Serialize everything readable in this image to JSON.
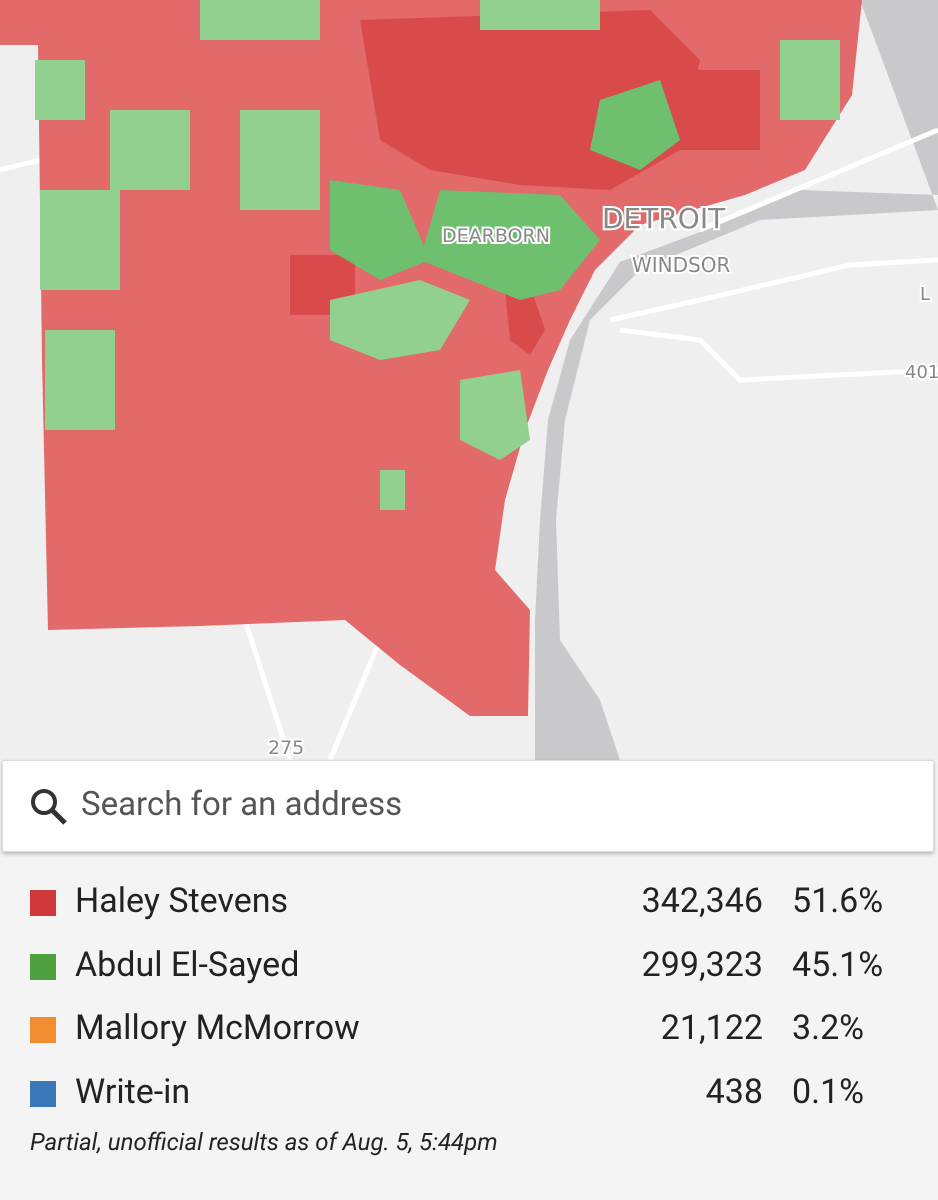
{
  "map": {
    "labels": [
      "DEARBORN",
      "DETROIT",
      "WINDSOR",
      "275",
      "L",
      "401"
    ]
  },
  "search": {
    "placeholder": "Search for an address"
  },
  "results": {
    "rows": [
      {
        "name": "Haley Stevens",
        "votes": "342,346",
        "percent": "51.6%",
        "color": "#d0393a"
      },
      {
        "name": "Abdul El-Sayed",
        "votes": "299,323",
        "percent": "45.1%",
        "color": "#4ea03f"
      },
      {
        "name": "Mallory McMorrow",
        "votes": "21,122",
        "percent": "3.2%",
        "color": "#f28c30"
      },
      {
        "name": "Write-in",
        "votes": "438",
        "percent": "0.1%",
        "color": "#3a78b8"
      }
    ],
    "note": "Partial, unofficial results as of Aug. 5, 5:44pm"
  }
}
